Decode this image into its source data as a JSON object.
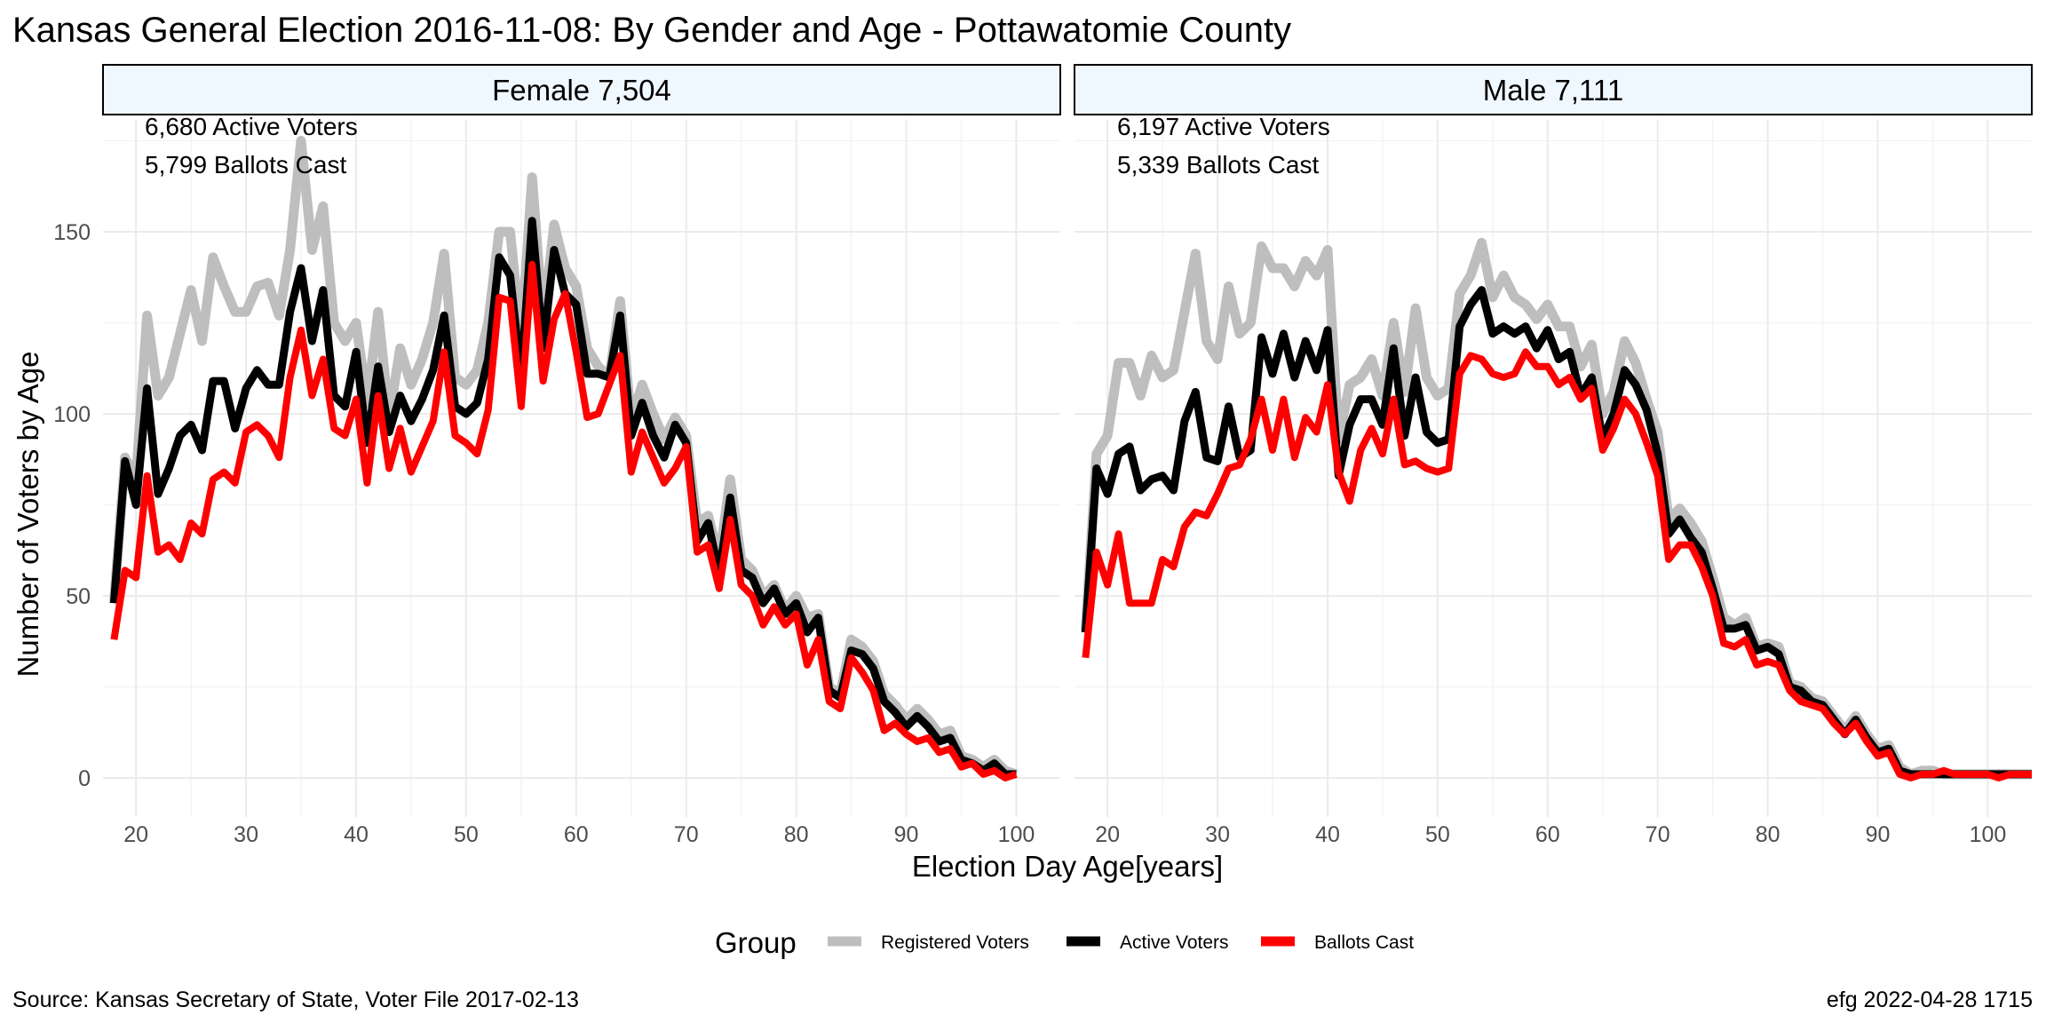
{
  "chart_data": {
    "type": "line",
    "title": "Kansas General Election 2016-11-08:  By Gender and Age - Pottawatomie County",
    "xlabel": "Election Day Age[years]",
    "ylabel": "Number of Voters by Age",
    "xlim": [
      17,
      104
    ],
    "ylim": [
      0,
      175
    ],
    "x_ticks": [
      20,
      30,
      40,
      50,
      60,
      70,
      80,
      90,
      100
    ],
    "y_ticks": [
      0,
      50,
      100,
      150
    ],
    "grid": true,
    "legend": {
      "title": "Group",
      "position": "bottom",
      "entries": [
        {
          "label": "Registered Voters",
          "color": "#bebebe"
        },
        {
          "label": "Active Voters",
          "color": "#000000"
        },
        {
          "label": "Ballots Cast",
          "color": "#ff0000"
        }
      ]
    },
    "panels": [
      {
        "strip": "Female 7,504",
        "annotations": [
          "6,680 Active Voters",
          "5,799 Ballots Cast"
        ],
        "x": [
          18,
          19,
          20,
          21,
          22,
          23,
          24,
          25,
          26,
          27,
          28,
          29,
          30,
          31,
          32,
          33,
          34,
          35,
          36,
          37,
          38,
          39,
          40,
          41,
          42,
          43,
          44,
          45,
          46,
          47,
          48,
          49,
          50,
          51,
          52,
          53,
          54,
          55,
          56,
          57,
          58,
          59,
          60,
          61,
          62,
          63,
          64,
          65,
          66,
          67,
          68,
          69,
          70,
          71,
          72,
          73,
          74,
          75,
          76,
          77,
          78,
          79,
          80,
          81,
          82,
          83,
          84,
          85,
          86,
          87,
          88,
          89,
          90,
          91,
          92,
          93,
          94,
          95,
          96,
          97,
          98,
          99,
          100
        ],
        "series": [
          {
            "name": "Registered Voters",
            "values": [
              48,
              88,
              82,
              127,
              105,
              110,
              122,
              134,
              120,
              143,
              135,
              128,
              128,
              135,
              136,
              127,
              145,
              175,
              145,
              157,
              125,
              120,
              125,
              103,
              128,
              99,
              118,
              108,
              115,
              125,
              144,
              110,
              108,
              112,
              125,
              150,
              150,
              120,
              165,
              125,
              152,
              140,
              135,
              118,
              113,
              110,
              131,
              98,
              108,
              100,
              93,
              99,
              94,
              70,
              72,
              60,
              82,
              60,
              57,
              50,
              53,
              46,
              50,
              44,
              45,
              25,
              23,
              38,
              36,
              32,
              23,
              20,
              16,
              19,
              16,
              12,
              13,
              6,
              5,
              3,
              5,
              2,
              1
            ]
          },
          {
            "name": "Active Voters",
            "values": [
              48,
              87,
              75,
              107,
              78,
              85,
              94,
              97,
              90,
              109,
              109,
              96,
              107,
              112,
              108,
              108,
              128,
              140,
              120,
              134,
              105,
              102,
              117,
              92,
              113,
              95,
              105,
              98,
              104,
              112,
              127,
              102,
              100,
              103,
              115,
              143,
              138,
              110,
              153,
              118,
              145,
              133,
              130,
              111,
              111,
              110,
              127,
              94,
              103,
              94,
              88,
              97,
              92,
              65,
              70,
              56,
              77,
              57,
              55,
              48,
              52,
              45,
              48,
              40,
              44,
              24,
              22,
              35,
              34,
              30,
              21,
              18,
              14,
              17,
              14,
              10,
              11,
              5,
              4,
              2,
              4,
              1,
              1
            ]
          },
          {
            "name": "Ballots Cast",
            "values": [
              38,
              57,
              55,
              83,
              62,
              64,
              60,
              70,
              67,
              82,
              84,
              81,
              95,
              97,
              94,
              88,
              110,
              123,
              105,
              115,
              96,
              94,
              104,
              81,
              105,
              85,
              96,
              84,
              91,
              98,
              117,
              94,
              92,
              89,
              101,
              132,
              131,
              102,
              141,
              109,
              126,
              133,
              117,
              99,
              100,
              108,
              116,
              84,
              95,
              88,
              81,
              85,
              91,
              62,
              64,
              52,
              71,
              53,
              50,
              42,
              47,
              42,
              45,
              31,
              38,
              21,
              19,
              33,
              29,
              24,
              13,
              15,
              12,
              10,
              11,
              7,
              8,
              3,
              4,
              1,
              2,
              0,
              1
            ]
          }
        ]
      },
      {
        "strip": "Male 7,111",
        "annotations": [
          "6,197 Active Voters",
          "5,339 Ballots Cast"
        ],
        "x": [
          18,
          19,
          20,
          21,
          22,
          23,
          24,
          25,
          26,
          27,
          28,
          29,
          30,
          31,
          32,
          33,
          34,
          35,
          36,
          37,
          38,
          39,
          40,
          41,
          42,
          43,
          44,
          45,
          46,
          47,
          48,
          49,
          50,
          51,
          52,
          53,
          54,
          55,
          56,
          57,
          58,
          59,
          60,
          61,
          62,
          63,
          64,
          65,
          66,
          67,
          68,
          69,
          70,
          71,
          72,
          73,
          74,
          75,
          76,
          77,
          78,
          79,
          80,
          81,
          82,
          83,
          84,
          85,
          86,
          87,
          88,
          89,
          90,
          91,
          92,
          93,
          94,
          95,
          96,
          97,
          98,
          99,
          100,
          101,
          102,
          103,
          104
        ],
        "series": [
          {
            "name": "Registered Voters",
            "values": [
              40,
              89,
              94,
              114,
              114,
              105,
              116,
              110,
              112,
              128,
              144,
              120,
              115,
              135,
              122,
              125,
              146,
              140,
              140,
              135,
              142,
              138,
              145,
              93,
              108,
              110,
              115,
              105,
              125,
              106,
              129,
              110,
              105,
              107,
              133,
              138,
              147,
              132,
              138,
              132,
              130,
              126,
              130,
              124,
              124,
              113,
              119,
              100,
              106,
              120,
              114,
              104,
              95,
              71,
              74,
              70,
              65,
              55,
              44,
              42,
              44,
              36,
              37,
              36,
              26,
              25,
              22,
              21,
              17,
              13,
              17,
              12,
              8,
              9,
              3,
              1,
              2,
              2,
              1,
              1,
              1,
              1,
              1,
              1,
              1,
              1,
              1
            ]
          },
          {
            "name": "Active Voters",
            "values": [
              40,
              85,
              78,
              89,
              91,
              79,
              82,
              83,
              79,
              98,
              106,
              88,
              87,
              102,
              88,
              90,
              121,
              111,
              122,
              110,
              120,
              112,
              123,
              83,
              97,
              104,
              104,
              97,
              118,
              94,
              110,
              95,
              92,
              93,
              124,
              130,
              134,
              122,
              124,
              122,
              124,
              118,
              123,
              115,
              117,
              105,
              110,
              93,
              100,
              112,
              108,
              101,
              89,
              67,
              71,
              66,
              62,
              52,
              41,
              41,
              42,
              35,
              36,
              34,
              25,
              24,
              21,
              20,
              16,
              12,
              16,
              11,
              7,
              8,
              2,
              1,
              1,
              1,
              1,
              1,
              1,
              1,
              1,
              1,
              1,
              1,
              1
            ]
          },
          {
            "name": "Ballots Cast",
            "values": [
              33,
              62,
              53,
              67,
              48,
              48,
              48,
              60,
              58,
              69,
              73,
              72,
              78,
              85,
              86,
              93,
              104,
              90,
              104,
              88,
              99,
              95,
              108,
              84,
              76,
              90,
              96,
              89,
              104,
              86,
              87,
              85,
              84,
              85,
              111,
              116,
              115,
              111,
              110,
              111,
              117,
              113,
              113,
              108,
              110,
              104,
              107,
              90,
              96,
              104,
              100,
              92,
              83,
              60,
              64,
              64,
              58,
              50,
              37,
              36,
              38,
              31,
              32,
              31,
              24,
              21,
              20,
              19,
              15,
              12,
              15,
              10,
              6,
              7,
              1,
              0,
              1,
              1,
              2,
              1,
              1,
              1,
              1,
              0,
              1,
              1,
              1
            ]
          }
        ]
      }
    ]
  },
  "caption": {
    "source": "Source:  Kansas Secretary of State, Voter File  2017-02-13",
    "stamp": "efg 2022-04-28 1715"
  }
}
